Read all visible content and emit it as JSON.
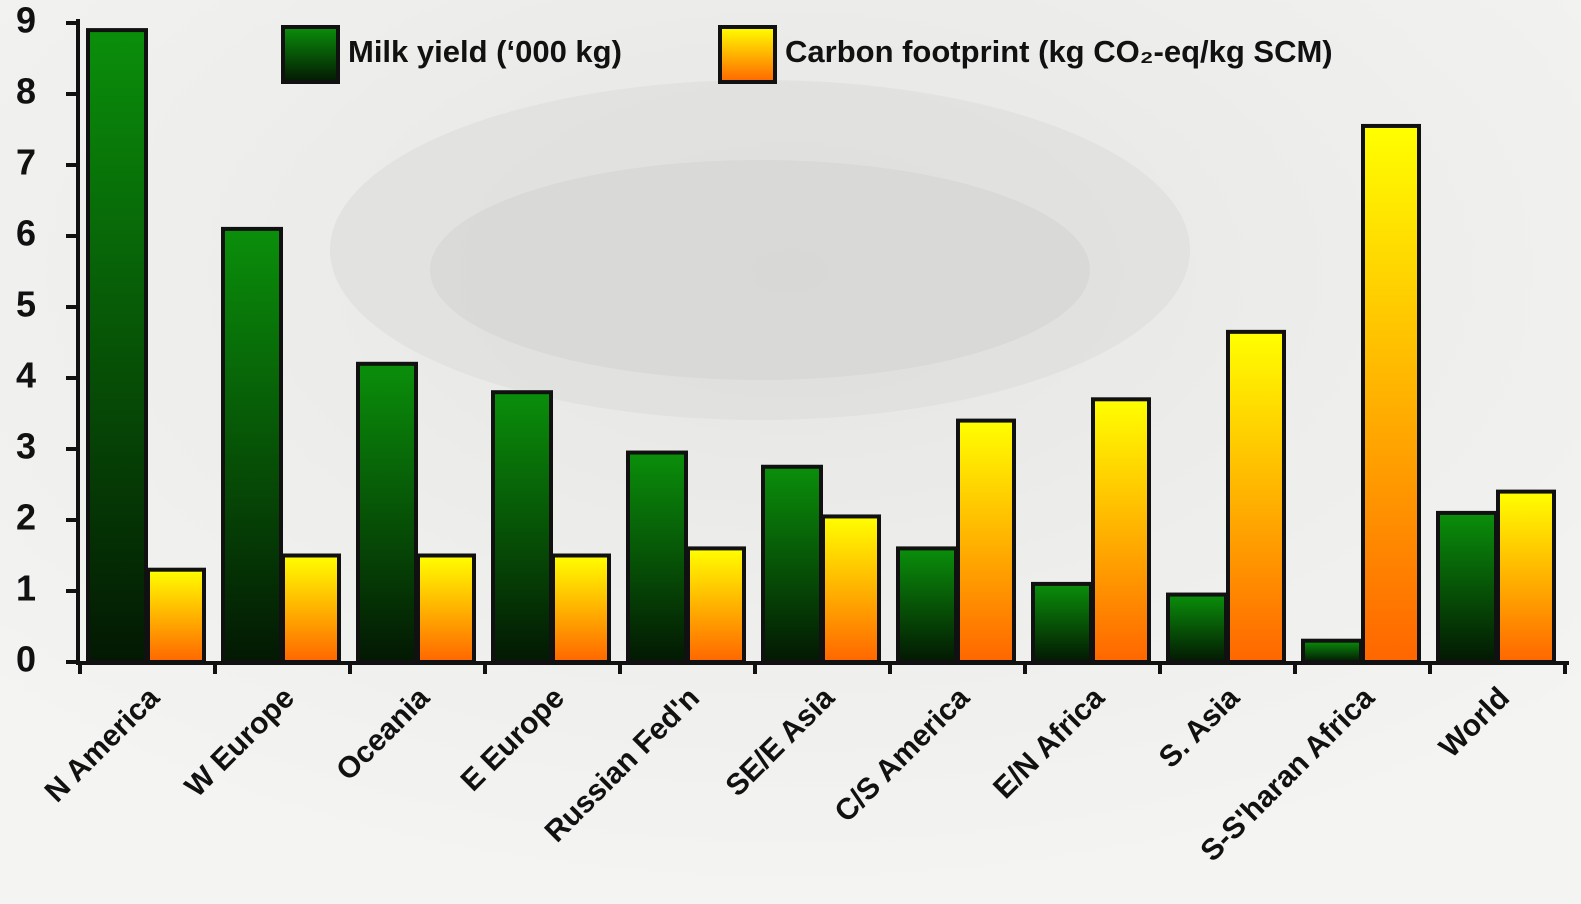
{
  "chart_data": {
    "type": "bar",
    "categories": [
      "N America",
      "W Europe",
      "Oceania",
      "E Europe",
      "Russian Fed'n",
      "SE/E Asia",
      "C/S America",
      "E/N Africa",
      "S. Asia",
      "S-S'haran Africa",
      "World"
    ],
    "series": [
      {
        "name": "Milk yield (‘000 kg)",
        "color": "#0a8f0a",
        "color_end": "#031803",
        "values": [
          8.9,
          6.1,
          4.2,
          3.8,
          2.95,
          2.75,
          1.6,
          1.1,
          0.95,
          0.3,
          2.1
        ]
      },
      {
        "name": "Carbon footprint (kg CO₂-eq/kg SCM)",
        "color": "#ffff00",
        "color_end": "#ff6600",
        "values": [
          1.3,
          1.5,
          1.5,
          1.5,
          1.6,
          2.05,
          3.4,
          3.7,
          4.65,
          7.55,
          2.4
        ]
      }
    ],
    "ylim": [
      0,
      9
    ],
    "yticks": [
      0,
      1,
      2,
      3,
      4,
      5,
      6,
      7,
      8,
      9
    ],
    "grid": false,
    "legend": "top"
  }
}
